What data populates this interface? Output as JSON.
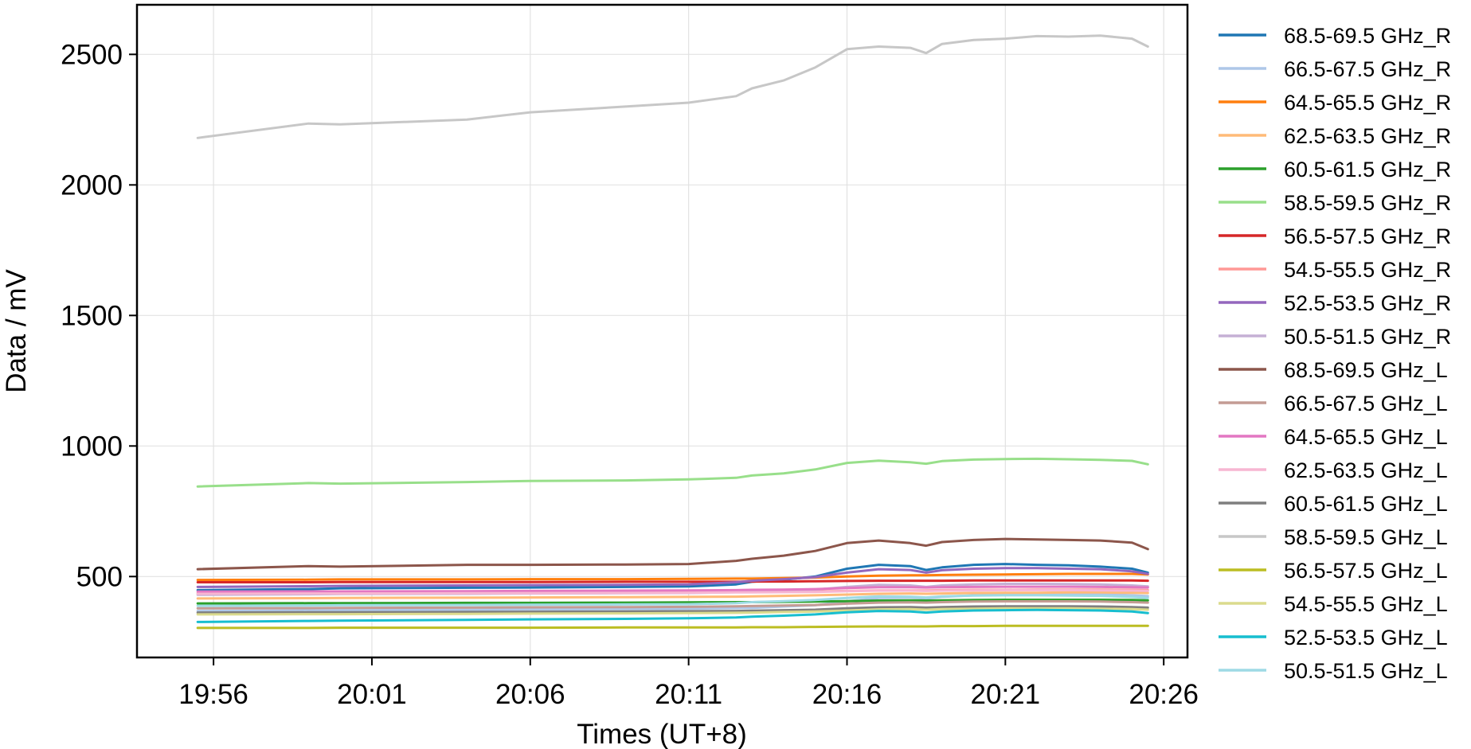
{
  "chart_data": {
    "type": "line",
    "title": "",
    "xlabel": "Times (UT+8)",
    "ylabel": "Data / mV",
    "grid": true,
    "legend_position": "right-outside",
    "x_ticks": [
      "19:56",
      "20:01",
      "20:06",
      "20:11",
      "20:16",
      "20:21",
      "20:26"
    ],
    "y_ticks": [
      500,
      1000,
      1500,
      2000,
      2500
    ],
    "xlim": [
      "19:53:35",
      "20:26:45"
    ],
    "ylim": [
      190,
      2690
    ],
    "x": [
      "19:55:30",
      "19:59:00",
      "20:00:00",
      "20:04:00",
      "20:06:00",
      "20:09:00",
      "20:11:00",
      "20:12:30",
      "20:13:00",
      "20:14:00",
      "20:15:00",
      "20:16:00",
      "20:17:00",
      "20:18:00",
      "20:18:30",
      "20:19:00",
      "20:20:00",
      "20:21:00",
      "20:22:00",
      "20:23:00",
      "20:24:00",
      "20:25:00",
      "20:25:30"
    ],
    "series": [
      {
        "name": "68.5-69.5 GHz_R",
        "color": "#1f77b4",
        "values": [
          448,
          452,
          455,
          457,
          458,
          460,
          462,
          470,
          480,
          488,
          500,
          530,
          545,
          540,
          525,
          535,
          545,
          548,
          545,
          543,
          538,
          530,
          515
        ]
      },
      {
        "name": "66.5-67.5 GHz_R",
        "color": "#aec7e8",
        "values": [
          368,
          370,
          371,
          372,
          374,
          375,
          377,
          379,
          380,
          385,
          390,
          405,
          418,
          420,
          416,
          422,
          428,
          432,
          434,
          434,
          433,
          428,
          425
        ]
      },
      {
        "name": "64.5-65.5 GHz_R",
        "color": "#ff7f0e",
        "values": [
          487,
          488,
          489,
          489,
          490,
          490,
          491,
          492,
          492,
          494,
          496,
          500,
          503,
          505,
          505,
          506,
          507,
          508,
          509,
          510,
          510,
          510,
          508
        ]
      },
      {
        "name": "62.5-63.5 GHz_R",
        "color": "#ffbb78",
        "values": [
          416,
          417,
          418,
          419,
          420,
          421,
          422,
          423,
          424,
          426,
          428,
          431,
          434,
          435,
          434,
          435,
          437,
          438,
          438,
          439,
          439,
          438,
          437
        ]
      },
      {
        "name": "60.5-61.5 GHz_R",
        "color": "#2ca02c",
        "values": [
          397,
          398,
          398,
          399,
          399,
          400,
          401,
          402,
          402,
          403,
          404,
          406,
          408,
          409,
          408,
          409,
          410,
          411,
          411,
          411,
          411,
          410,
          409
        ]
      },
      {
        "name": "58.5-59.5 GHz_R",
        "color": "#98df8a",
        "values": [
          845,
          858,
          856,
          862,
          866,
          868,
          872,
          878,
          887,
          895,
          910,
          935,
          944,
          938,
          932,
          942,
          948,
          950,
          951,
          949,
          947,
          943,
          930
        ]
      },
      {
        "name": "56.5-57.5 GHz_R",
        "color": "#d62728",
        "values": [
          478,
          478,
          479,
          479,
          479,
          480,
          480,
          480,
          481,
          481,
          482,
          483,
          484,
          484,
          484,
          484,
          485,
          485,
          485,
          485,
          485,
          485,
          484
        ]
      },
      {
        "name": "54.5-55.5 GHz_R",
        "color": "#ff9896",
        "values": [
          436,
          437,
          437,
          438,
          438,
          439,
          440,
          440,
          441,
          442,
          443,
          445,
          447,
          447,
          447,
          448,
          449,
          449,
          450,
          450,
          450,
          449,
          448
        ]
      },
      {
        "name": "52.5-53.5 GHz_R",
        "color": "#9467bd",
        "values": [
          460,
          463,
          464,
          466,
          467,
          468,
          470,
          478,
          484,
          490,
          498,
          515,
          528,
          525,
          515,
          524,
          530,
          532,
          532,
          530,
          528,
          520,
          510
        ]
      },
      {
        "name": "50.5-51.5 GHz_R",
        "color": "#c5b0d5",
        "values": [
          430,
          432,
          433,
          434,
          435,
          436,
          437,
          440,
          443,
          446,
          450,
          460,
          468,
          466,
          460,
          466,
          470,
          472,
          472,
          471,
          470,
          466,
          462
        ]
      },
      {
        "name": "68.5-69.5 GHz_L",
        "color": "#8c564b",
        "values": [
          528,
          540,
          538,
          545,
          545,
          546,
          548,
          560,
          568,
          580,
          598,
          628,
          638,
          628,
          618,
          632,
          640,
          644,
          642,
          640,
          638,
          630,
          605
        ]
      },
      {
        "name": "66.5-67.5 GHz_L",
        "color": "#c49c94",
        "values": [
          378,
          379,
          380,
          381,
          382,
          383,
          384,
          386,
          387,
          389,
          391,
          396,
          400,
          401,
          400,
          402,
          404,
          405,
          405,
          405,
          404,
          402,
          400
        ]
      },
      {
        "name": "64.5-65.5 GHz_L",
        "color": "#e377c2",
        "values": [
          442,
          443,
          443,
          444,
          445,
          446,
          447,
          448,
          449,
          450,
          452,
          456,
          459,
          459,
          458,
          459,
          460,
          461,
          461,
          461,
          460,
          459,
          458
        ]
      },
      {
        "name": "62.5-63.5 GHz_L",
        "color": "#f7b6d2",
        "values": [
          434,
          435,
          435,
          436,
          436,
          437,
          438,
          439,
          439,
          440,
          441,
          444,
          446,
          446,
          445,
          446,
          447,
          448,
          448,
          448,
          447,
          446,
          445
        ]
      },
      {
        "name": "60.5-61.5 GHz_L",
        "color": "#7f7f7f",
        "values": [
          362,
          363,
          363,
          364,
          365,
          366,
          367,
          368,
          369,
          371,
          373,
          378,
          382,
          383,
          381,
          383,
          385,
          386,
          386,
          386,
          385,
          383,
          381
        ]
      },
      {
        "name": "58.5-59.5 GHz_L",
        "color": "#c7c7c7",
        "values": [
          2180,
          2235,
          2232,
          2250,
          2278,
          2300,
          2315,
          2340,
          2370,
          2400,
          2450,
          2520,
          2530,
          2525,
          2505,
          2540,
          2555,
          2560,
          2570,
          2568,
          2572,
          2560,
          2530
        ]
      },
      {
        "name": "56.5-57.5 GHz_L",
        "color": "#bcbd22",
        "values": [
          303,
          303,
          304,
          304,
          304,
          305,
          305,
          305,
          306,
          306,
          307,
          308,
          309,
          309,
          309,
          310,
          310,
          311,
          311,
          311,
          311,
          311,
          311
        ]
      },
      {
        "name": "54.5-55.5 GHz_L",
        "color": "#dbdb8d",
        "values": [
          355,
          356,
          356,
          357,
          358,
          359,
          360,
          361,
          362,
          364,
          366,
          370,
          374,
          375,
          373,
          375,
          377,
          378,
          378,
          378,
          377,
          375,
          373
        ]
      },
      {
        "name": "52.5-53.5 GHz_L",
        "color": "#17becf",
        "values": [
          326,
          330,
          331,
          334,
          336,
          338,
          340,
          343,
          346,
          350,
          355,
          363,
          368,
          366,
          362,
          366,
          370,
          371,
          372,
          371,
          370,
          366,
          360
        ]
      },
      {
        "name": "50.5-51.5 GHz_L",
        "color": "#9edae5",
        "values": [
          388,
          389,
          390,
          391,
          392,
          393,
          394,
          398,
          402,
          406,
          410,
          418,
          424,
          423,
          420,
          424,
          427,
          428,
          428,
          427,
          426,
          422,
          418
        ]
      }
    ]
  }
}
